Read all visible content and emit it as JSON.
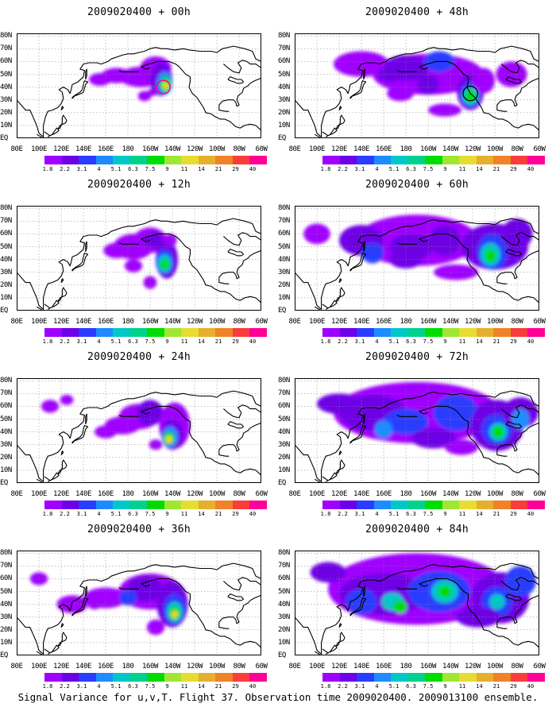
{
  "panels": [
    {
      "title": "2009020400 + 00h",
      "column": 0,
      "row": 0
    },
    {
      "title": "2009020400 + 12h",
      "column": 0,
      "row": 1
    },
    {
      "title": "2009020400 + 24h",
      "column": 0,
      "row": 2
    },
    {
      "title": "2009020400 + 36h",
      "column": 0,
      "row": 3
    },
    {
      "title": "2009020400 + 48h",
      "column": 1,
      "row": 0
    },
    {
      "title": "2009020400 + 60h",
      "column": 1,
      "row": 1
    },
    {
      "title": "2009020400 + 72h",
      "column": 1,
      "row": 2
    },
    {
      "title": "2009020400 + 84h",
      "column": 1,
      "row": 3
    }
  ],
  "lat_labels": [
    "80N",
    "70N",
    "60N",
    "50N",
    "40N",
    "30N",
    "20N",
    "10N",
    "EQ"
  ],
  "lon_labels": [
    "80E",
    "100E",
    "120E",
    "140E",
    "160E",
    "180",
    "160W",
    "140W",
    "120W",
    "100W",
    "80W",
    "60W"
  ],
  "colorbar": {
    "colors": [
      "#9f00ff",
      "#6e00e6",
      "#2a3cff",
      "#1e8cff",
      "#00c8c8",
      "#00d28c",
      "#00dc00",
      "#a0e632",
      "#e6dc32",
      "#e6af2d",
      "#f08228",
      "#fa3c3c",
      "#ff0096"
    ],
    "ticks": [
      "1.8",
      "2.2",
      "3.1",
      "4",
      "5.1",
      "6.3",
      "7.5",
      "9",
      "11",
      "14",
      "21",
      "29",
      "40"
    ]
  },
  "caption": "Signal Variance for u,v,T. Flight 37. Observation time 2009020400. 2009013100 ensemble."
}
